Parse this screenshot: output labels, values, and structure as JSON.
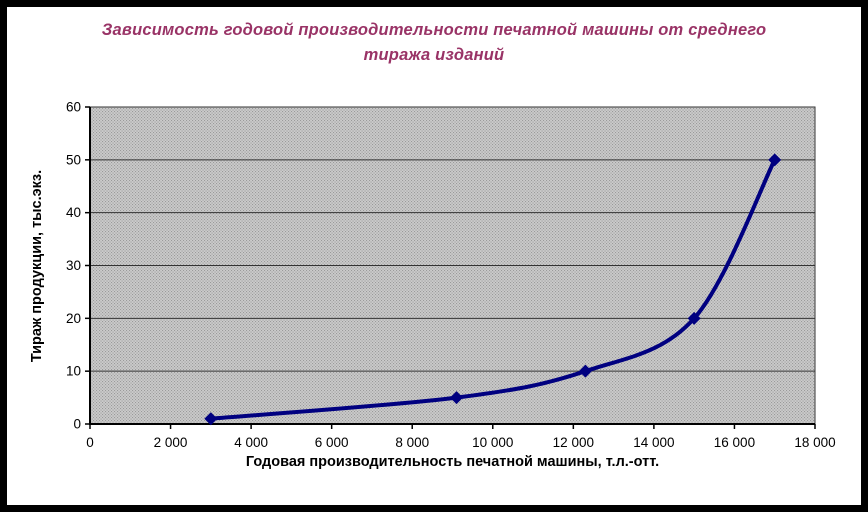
{
  "chart": {
    "title_lines": [
      "Зависимость годовой производительности печатной машины от среднего",
      "тиража изданий"
    ],
    "title_color": "#993366"
  },
  "chart_data": {
    "type": "line",
    "subtype": "xy-scatter-smoothed-with-markers",
    "title": "Зависимость годовой производительности печатной машины от среднего тиража изданий",
    "xlabel": "Годовая производительность печатной машины, т.л.-отт.",
    "ylabel": "Тираж продукции, тыс.экз.",
    "x": [
      3000,
      9100,
      12300,
      15000,
      17000
    ],
    "y": [
      1,
      5,
      10,
      20,
      50
    ],
    "xlim": [
      0,
      18000
    ],
    "ylim": [
      0,
      60
    ],
    "x_tick_step": 2000,
    "y_tick_step": 10,
    "x_tick_labels": [
      "0",
      "2 000",
      "4 000",
      "6 000",
      "8 000",
      "10 000",
      "12 000",
      "14 000",
      "16 000",
      "18 000"
    ],
    "y_tick_labels": [
      "0",
      "10",
      "20",
      "30",
      "40",
      "50",
      "60"
    ],
    "grid": "horizontal",
    "legend": "none",
    "line_color": "#000080",
    "line_width": 4,
    "marker": "diamond",
    "marker_color": "#000080",
    "plot_bg_color": "#cbcbcb",
    "plot_bg_dot_color": "#9a9a9a",
    "gridline_color": "#333333",
    "axis_color": "#000000",
    "tick_label_color": "#000000"
  }
}
